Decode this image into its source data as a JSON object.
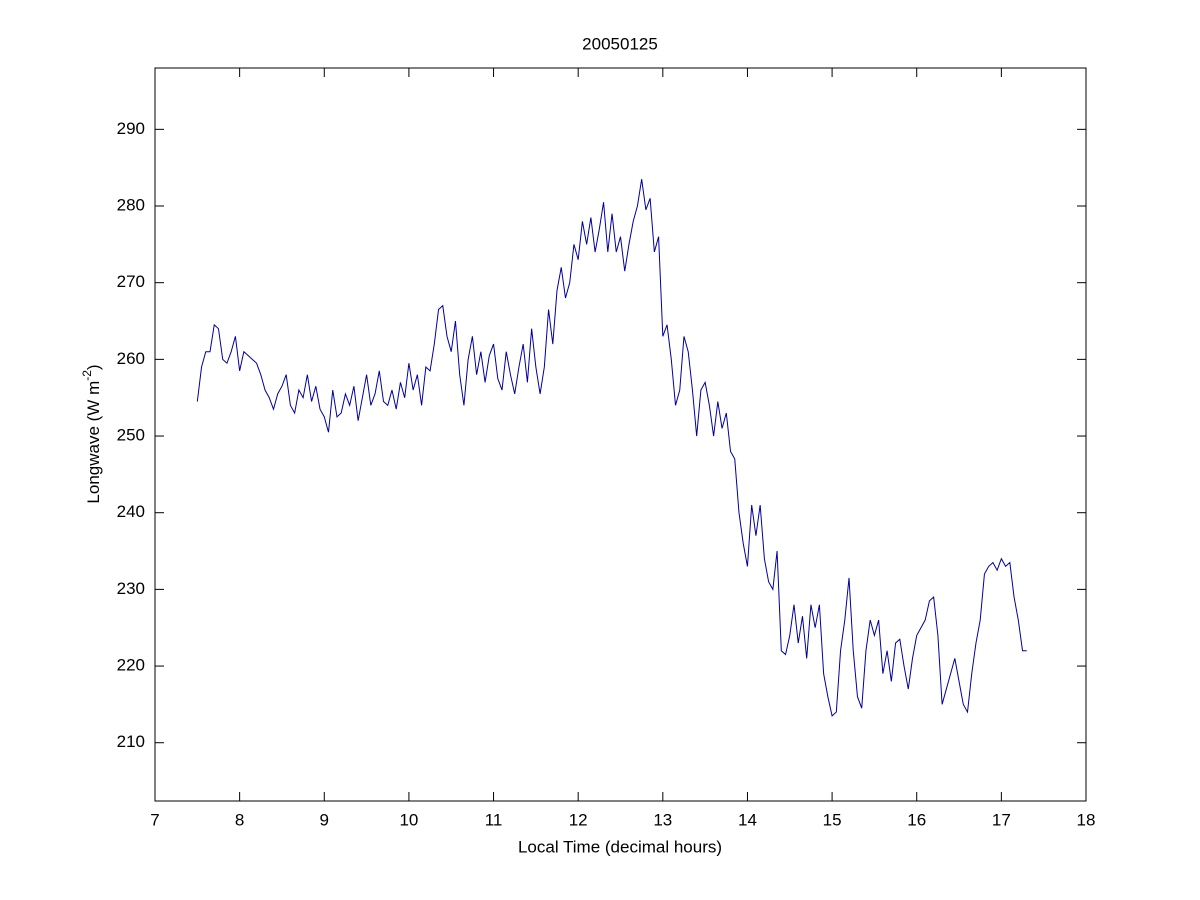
{
  "chart_data": {
    "type": "line",
    "title": "20050125",
    "xlabel": "Local Time (decimal hours)",
    "ylabel": {
      "text": "Longwave (W m",
      "sup": "-2",
      "tail": ")"
    },
    "xlim": [
      7,
      18
    ],
    "xticks": [
      7,
      8,
      9,
      10,
      11,
      12,
      13,
      14,
      15,
      16,
      17,
      18
    ],
    "ylim": [
      202.4,
      298
    ],
    "yticks": [
      210,
      220,
      230,
      240,
      250,
      260,
      270,
      280,
      290
    ],
    "grid": false,
    "series": [
      {
        "color": "#0000a0",
        "x": [
          7.5,
          7.55,
          7.6,
          7.65,
          7.7,
          7.75,
          7.8,
          7.85,
          7.9,
          7.95,
          8,
          8.05,
          8.1,
          8.15,
          8.2,
          8.25,
          8.3,
          8.35,
          8.4,
          8.45,
          8.5,
          8.55,
          8.6,
          8.65,
          8.7,
          8.75,
          8.8,
          8.85,
          8.9,
          8.95,
          9,
          9.05,
          9.1,
          9.15,
          9.2,
          9.25,
          9.3,
          9.35,
          9.4,
          9.45,
          9.5,
          9.55,
          9.6,
          9.65,
          9.7,
          9.75,
          9.8,
          9.85,
          9.9,
          9.95,
          10,
          10.05,
          10.1,
          10.15,
          10.2,
          10.25,
          10.3,
          10.35,
          10.4,
          10.45,
          10.5,
          10.55,
          10.6,
          10.65,
          10.7,
          10.75,
          10.8,
          10.85,
          10.9,
          10.95,
          11,
          11.05,
          11.1,
          11.15,
          11.2,
          11.25,
          11.3,
          11.35,
          11.4,
          11.45,
          11.5,
          11.55,
          11.6,
          11.65,
          11.7,
          11.75,
          11.8,
          11.85,
          11.9,
          11.95,
          12,
          12.05,
          12.1,
          12.15,
          12.2,
          12.25,
          12.3,
          12.35,
          12.4,
          12.45,
          12.5,
          12.55,
          12.6,
          12.65,
          12.7,
          12.75,
          12.8,
          12.85,
          12.9,
          12.95,
          13,
          13.05,
          13.1,
          13.15,
          13.2,
          13.25,
          13.3,
          13.35,
          13.4,
          13.45,
          13.5,
          13.55,
          13.6,
          13.65,
          13.7,
          13.75,
          13.8,
          13.85,
          13.9,
          13.95,
          14,
          14.05,
          14.1,
          14.15,
          14.2,
          14.25,
          14.3,
          14.35,
          14.4,
          14.45,
          14.5,
          14.55,
          14.6,
          14.65,
          14.7,
          14.75,
          14.8,
          14.85,
          14.9,
          14.95,
          15,
          15.05,
          15.1,
          15.15,
          15.2,
          15.25,
          15.3,
          15.35,
          15.4,
          15.45,
          15.5,
          15.55,
          15.6,
          15.65,
          15.7,
          15.75,
          15.8,
          15.85,
          15.9,
          15.95,
          16,
          16.05,
          16.1,
          16.15,
          16.2,
          16.25,
          16.3,
          16.35,
          16.4,
          16.45,
          16.5,
          16.55,
          16.6,
          16.65,
          16.7,
          16.75,
          16.8,
          16.85,
          16.9,
          16.95,
          17,
          17.05,
          17.1,
          17.15,
          17.2,
          17.25,
          17.3
        ],
        "values": [
          254.5,
          259,
          261,
          261,
          264.5,
          264,
          260,
          259.5,
          261,
          263,
          258.5,
          261,
          260.5,
          260,
          259.5,
          258,
          256,
          255,
          253.5,
          255.5,
          256.5,
          258,
          254,
          253,
          256,
          255,
          258,
          254.5,
          256.5,
          253.5,
          252.5,
          250.5,
          256,
          252.5,
          253,
          255.5,
          254,
          256.5,
          252,
          255,
          258,
          254,
          255.5,
          258.5,
          254.5,
          254,
          256,
          253.5,
          257,
          255,
          259.5,
          256,
          258,
          254,
          259,
          258.5,
          262,
          266.5,
          267,
          263,
          261,
          265,
          258,
          254,
          260,
          263,
          258,
          261,
          257,
          260.5,
          262,
          257.5,
          256,
          261,
          258,
          255.5,
          259,
          262,
          257,
          264,
          259,
          255.5,
          259,
          266.5,
          262,
          269,
          272,
          268,
          270,
          275,
          273,
          278,
          275,
          278.5,
          274,
          277,
          280.5,
          274,
          279,
          274,
          276,
          271.5,
          275,
          278,
          280,
          283.5,
          279.5,
          281,
          274,
          276,
          263,
          264.5,
          260,
          254,
          256,
          263,
          261,
          256,
          250,
          256,
          257,
          254,
          250,
          254.5,
          251,
          253,
          248,
          247,
          240,
          236,
          233,
          241,
          237,
          241,
          234,
          231,
          230,
          235,
          222,
          221.5,
          224,
          228,
          223,
          226.5,
          221,
          228,
          225,
          228,
          219,
          216,
          213.5,
          214,
          222,
          226,
          231.5,
          222,
          216,
          214.5,
          222,
          226,
          224,
          226,
          219,
          222,
          218,
          223,
          223.5,
          220,
          217,
          221,
          224,
          225,
          226,
          228.5,
          229,
          224,
          215,
          217,
          219,
          221,
          218,
          215,
          214,
          219,
          223,
          226,
          232,
          233,
          233.5,
          232.5,
          234,
          233,
          233.5,
          229,
          226,
          222,
          222
        ]
      }
    ]
  }
}
